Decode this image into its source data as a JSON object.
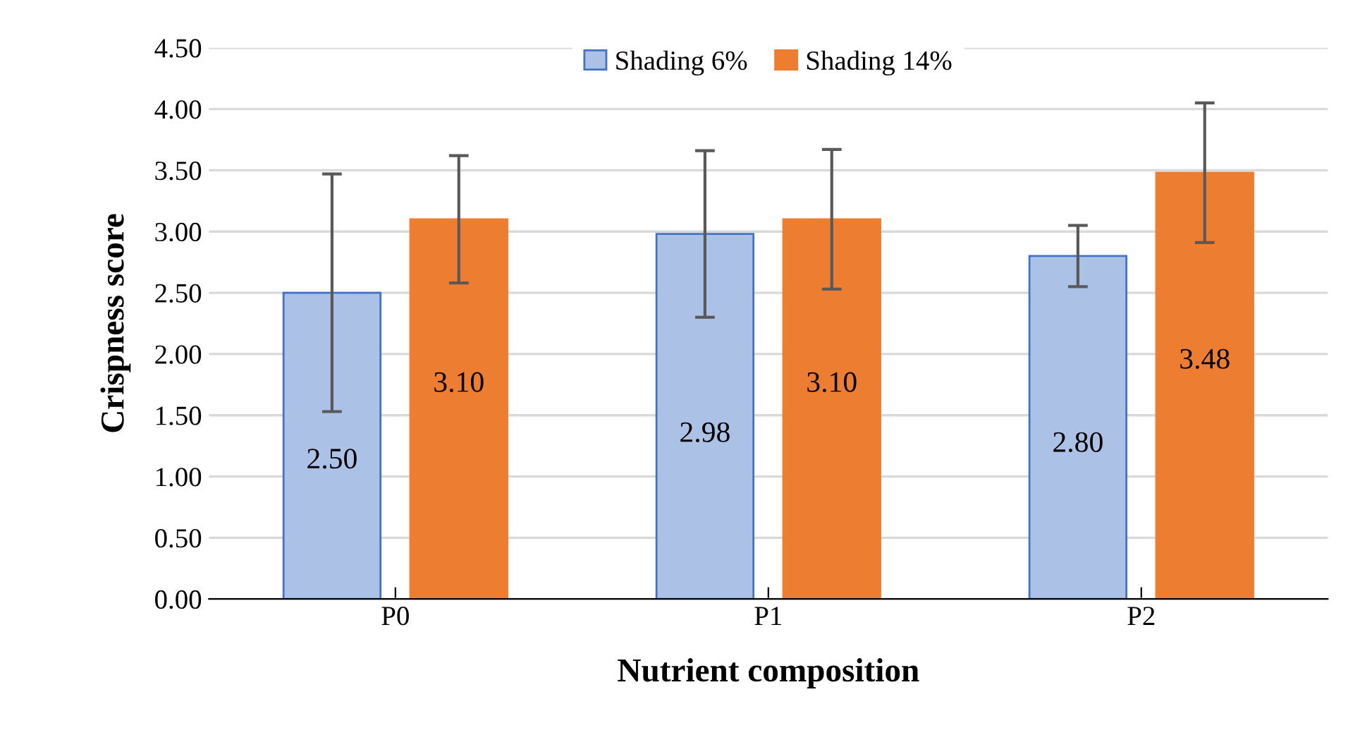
{
  "chart_data": {
    "type": "bar",
    "xlabel": "Nutrient composition",
    "ylabel": "Crispness score",
    "categories": [
      "P0",
      "P1",
      "P2"
    ],
    "series": [
      {
        "name": "Shading 6%",
        "color": "#abc1e6",
        "values": [
          2.5,
          2.98,
          2.8
        ],
        "value_labels": [
          "2.50",
          "2.98",
          "2.80"
        ],
        "errors": [
          0.97,
          0.68,
          0.25
        ]
      },
      {
        "name": "Shading 14%",
        "color": "#ed7d31",
        "values": [
          3.1,
          3.1,
          3.48
        ],
        "value_labels": [
          "3.10",
          "3.10",
          "3.48"
        ],
        "errors": [
          0.52,
          0.57,
          0.57
        ]
      }
    ],
    "ylim": [
      0,
      4.5
    ],
    "yticks": [
      {
        "value": 0,
        "label": "0.00"
      },
      {
        "value": 0.5,
        "label": "0.50"
      },
      {
        "value": 1,
        "label": "1.00"
      },
      {
        "value": 1.5,
        "label": "1.50"
      },
      {
        "value": 2,
        "label": "2.00"
      },
      {
        "value": 2.5,
        "label": "2.50"
      },
      {
        "value": 3,
        "label": "3.00"
      },
      {
        "value": 3.5,
        "label": "3.50"
      },
      {
        "value": 4,
        "label": "4.00"
      },
      {
        "value": 4.5,
        "label": "4.50"
      }
    ],
    "grid": "y",
    "legend": "top"
  }
}
